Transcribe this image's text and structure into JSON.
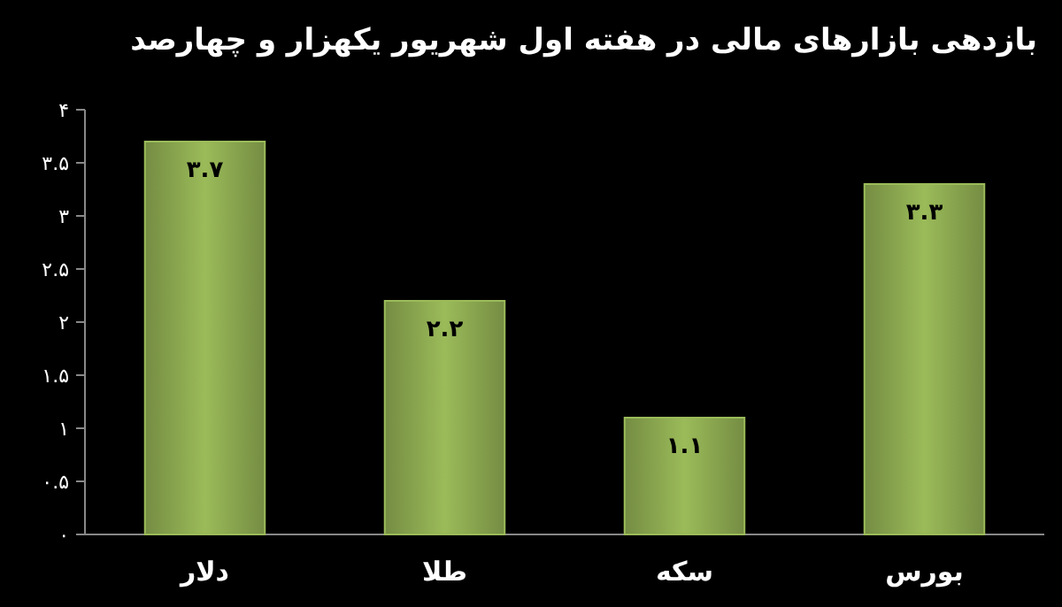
{
  "chart_data": {
    "type": "bar",
    "title": "بازدهی بازارهای مالی در هفته اول شهریور یکهزار و چهارصد",
    "categories": [
      "دلار",
      "طلا",
      "سکه",
      "بورس"
    ],
    "values": [
      3.7,
      2.2,
      1.1,
      3.3
    ],
    "value_labels": [
      "۳.۷",
      "۲.۲",
      "۱.۱",
      "۳.۳"
    ],
    "color": "#9bbb59",
    "ylim": [
      0,
      4
    ],
    "yticks": [
      {
        "value": 0,
        "label": "۰"
      },
      {
        "value": 0.5,
        "label": "۰.۵"
      },
      {
        "value": 1,
        "label": "۱"
      },
      {
        "value": 1.5,
        "label": "۱.۵"
      },
      {
        "value": 2,
        "label": "۲"
      },
      {
        "value": 2.5,
        "label": "۲.۵"
      },
      {
        "value": 3,
        "label": "۳"
      },
      {
        "value": 3.5,
        "label": "۳.۵"
      },
      {
        "value": 4,
        "label": "۴"
      }
    ],
    "grid": false
  }
}
